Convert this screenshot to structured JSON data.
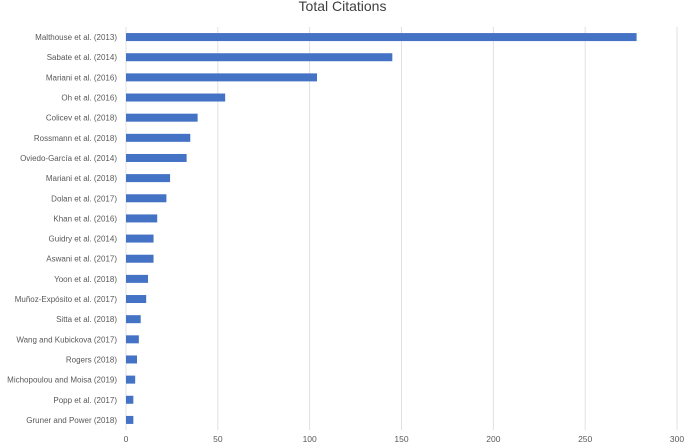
{
  "chart_data": {
    "type": "bar",
    "orientation": "horizontal",
    "title": "Total Citations",
    "categories": [
      "Malthouse et al. (2013)",
      "Sabate et al. (2014)",
      "Mariani et al. (2016)",
      "Oh et al. (2016)",
      "Colicev et al. (2018)",
      "Rossmann et al. (2018)",
      "Oviedo-García et al. (2014)",
      "Mariani et al. (2018)",
      "Dolan et al. (2017)",
      "Khan et al. (2016)",
      "Guidry et al. (2014)",
      "Aswani et al. (2017)",
      "Yoon et al. (2018)",
      "Muñoz-Expósito et al. (2017)",
      "Sitta et al. (2018)",
      "Wang and Kubickova (2017)",
      "Rogers (2018)",
      "Michopoulou and Moisa (2019)",
      "Popp et al. (2017)",
      "Gruner and Power (2018)"
    ],
    "values": [
      278,
      145,
      104,
      54,
      39,
      35,
      33,
      24,
      22,
      17,
      15,
      15,
      12,
      11,
      8,
      7,
      6,
      5,
      4,
      4
    ],
    "xlim": [
      0,
      300
    ],
    "xticks": [
      "0",
      "50",
      "100",
      "150",
      "200",
      "250",
      "300"
    ],
    "grid": true,
    "legend": "none",
    "bar_color": "#4472C4",
    "grid_color": "#d9d9d9"
  }
}
